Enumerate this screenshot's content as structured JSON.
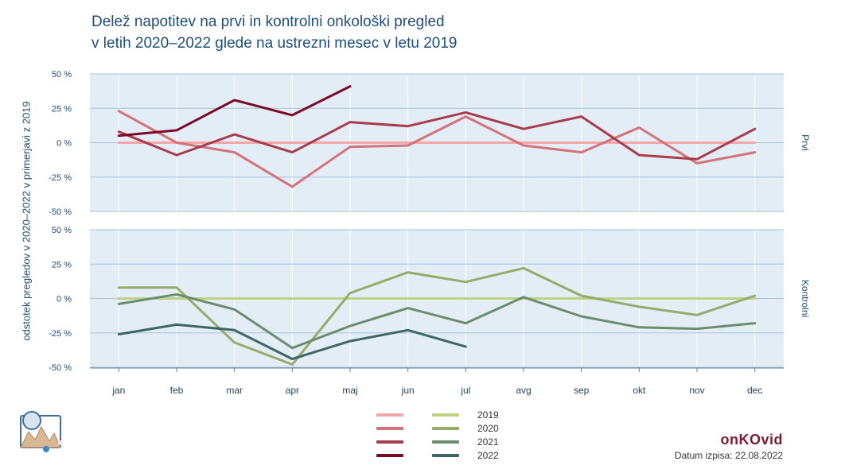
{
  "title_lines": [
    "Delež napotitev na prvi in kontrolni onkološki pregled",
    "v letih 2020–2022 glede na ustrezni mesec v letu 2019"
  ],
  "brand": "onKOvid",
  "date_text": "Datum izpisa: 22.08.2022",
  "chart_data": {
    "type": "line",
    "ylabel": "odstotek pregledov v 2020–2022 v primerjavi z 2019",
    "categories": [
      "jan",
      "feb",
      "mar",
      "apr",
      "maj",
      "jun",
      "jul",
      "avg",
      "sep",
      "okt",
      "nov",
      "dec"
    ],
    "ylim": [
      -50,
      50
    ],
    "yticks": [
      50,
      25,
      0,
      -25,
      -50
    ],
    "ytick_labels": [
      "50 %",
      "25 %",
      "0 %",
      "-25 %",
      "-50 %"
    ],
    "grid": true,
    "legend_labels": [
      "2019",
      "2020",
      "2021",
      "2022"
    ],
    "legend_position": "bottom-center",
    "panels": [
      {
        "name": "Prvi",
        "series": [
          {
            "name": "2019",
            "color": "#f4a6a8",
            "values": [
              0,
              0,
              0,
              0,
              0,
              0,
              0,
              0,
              0,
              0,
              0,
              0
            ]
          },
          {
            "name": "2020",
            "color": "#d4727a",
            "values": [
              23,
              0,
              -7,
              -32,
              -3,
              -2,
              19,
              -2,
              -7,
              11,
              -15,
              -7
            ]
          },
          {
            "name": "2021",
            "color": "#a83c4c",
            "values": [
              8,
              -9,
              6,
              -7,
              15,
              12,
              22,
              10,
              19,
              -9,
              -12,
              10
            ]
          },
          {
            "name": "2022",
            "color": "#7b0a26",
            "values": [
              5,
              9,
              31,
              20,
              41
            ]
          }
        ]
      },
      {
        "name": "Kontrolni",
        "series": [
          {
            "name": "2019",
            "color": "#bcd285",
            "values": [
              0,
              0,
              0,
              0,
              0,
              0,
              0,
              0,
              0,
              0,
              0,
              0
            ]
          },
          {
            "name": "2020",
            "color": "#93ac6a",
            "values": [
              8,
              8,
              -32,
              -48,
              4,
              19,
              12,
              22,
              2,
              -6,
              -12,
              2
            ]
          },
          {
            "name": "2021",
            "color": "#6c8c6e",
            "values": [
              -4,
              3,
              -8,
              -36,
              -20,
              -7,
              -18,
              1,
              -13,
              -21,
              -22,
              -18
            ]
          },
          {
            "name": "2022",
            "color": "#3f6565",
            "values": [
              -26,
              -19,
              -23,
              -44,
              -31,
              -23,
              -35
            ]
          }
        ]
      }
    ]
  }
}
